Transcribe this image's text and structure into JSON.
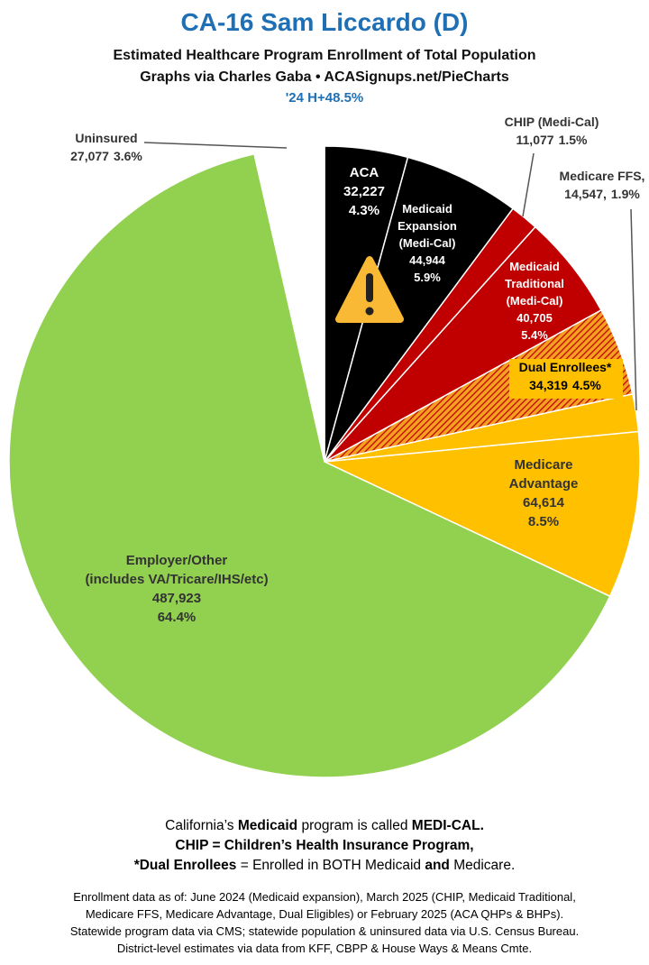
{
  "chart_data": {
    "type": "pie",
    "title": "CA-16 Sam Liccardo (D)",
    "subtitle": [
      "Estimated Healthcare Program Enrollment of Total Population",
      "Graphs via Charles Gaba  •  ACASignups.net/PieCharts"
    ],
    "annotation": "'24 H+48.5%",
    "slices": [
      {
        "name": "ACA",
        "value": 32227,
        "value_label": "32,227",
        "percent": 4.3,
        "percent_label": "4.3%",
        "color": "#000000"
      },
      {
        "name": "Medicaid\nExpansion\n(Medi-Cal)",
        "value": 44944,
        "value_label": "44,944",
        "percent": 5.9,
        "percent_label": "5.9%",
        "color": "#000000"
      },
      {
        "name": "CHIP (Medi-Cal)",
        "value": 11077,
        "value_label": "11,077",
        "percent": 1.5,
        "percent_label": "1.5%",
        "color": "#c00000"
      },
      {
        "name": "Medicaid\nTraditional\n(Medi-Cal)",
        "value": 40705,
        "value_label": "40,705",
        "percent": 5.4,
        "percent_label": "5.4%",
        "color": "#c00000"
      },
      {
        "name": "Dual Enrollees*",
        "value": 34319,
        "value_label": "34,319",
        "percent": 4.5,
        "percent_label": "4.5%",
        "color": "#f4a020",
        "hatched": true
      },
      {
        "name": "Medicare FFS,",
        "value": 14547,
        "value_label": "14,547,",
        "percent": 1.9,
        "percent_label": "1.9%",
        "color": "#ffc000"
      },
      {
        "name": "Medicare\nAdvantage",
        "value": 64614,
        "value_label": "64,614",
        "percent": 8.5,
        "percent_label": "8.5%",
        "color": "#ffc000"
      },
      {
        "name": "Employer/Other\n(includes VA/Tricare/IHS/etc)",
        "value": 487923,
        "value_label": "487,923",
        "percent": 64.4,
        "percent_label": "64.4%",
        "color": "#92d050"
      },
      {
        "name": "Uninsured",
        "value": 27077,
        "value_label": "27,077",
        "percent": 3.6,
        "percent_label": "3.6%",
        "color": "#ffffff"
      }
    ],
    "notes": [
      [
        {
          "text": "California’s "
        },
        {
          "text": "Medicaid",
          "bold": true
        },
        {
          "text": " program is called "
        },
        {
          "text": "MEDI-CAL.",
          "bold": true
        }
      ],
      [
        {
          "text": "CHIP = Children’s Health Insurance Program,",
          "bold": true
        }
      ],
      [
        {
          "text": "*Dual Enrollees",
          "bold": true
        },
        {
          "text": " = Enrolled in BOTH Medicaid "
        },
        {
          "text": "and",
          "bold": true
        },
        {
          "text": " Medicare."
        }
      ]
    ],
    "source": [
      "Enrollment data as of: June 2024 (Medicaid expansion), March 2025 (CHIP, Medicaid Traditional,",
      "Medicare FFS, Medicare Advantage, Dual Eligibles) or February 2025 (ACA QHPs & BHPs).",
      "Statewide program data via CMS; statewide population & uninsured data via U.S. Census Bureau.",
      "District-level estimates via data from KFF, CBPP & House Ways & Means Cmte."
    ]
  }
}
